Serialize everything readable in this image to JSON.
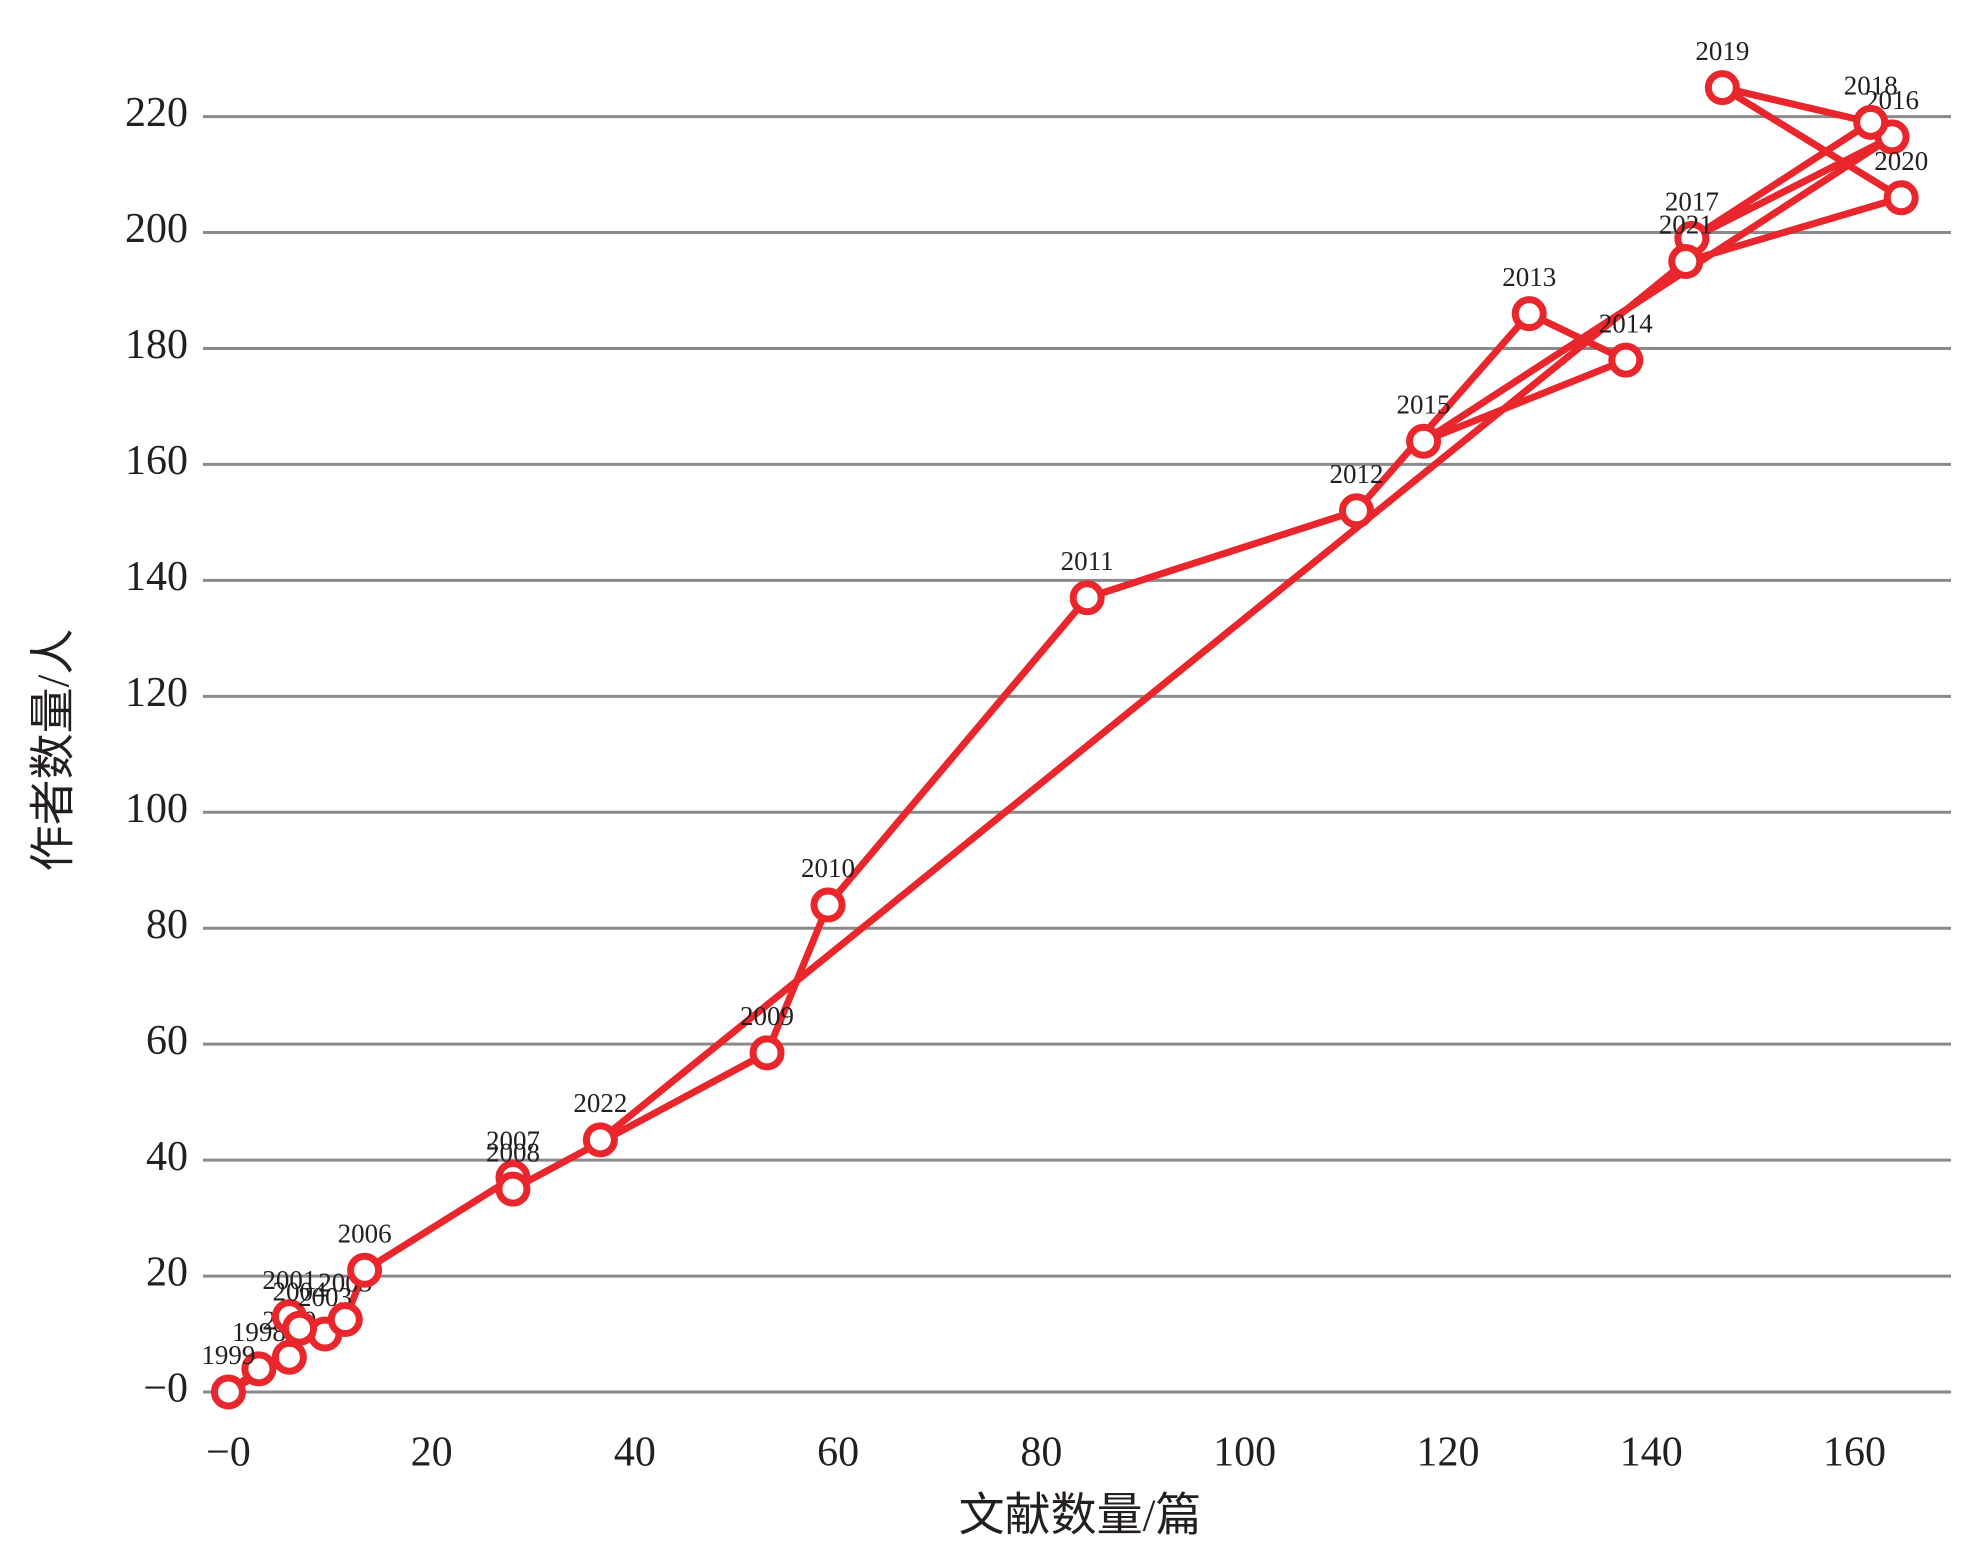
{
  "chart_data": {
    "type": "line",
    "x_label": "文献数量/篇",
    "y_label": "作者数量/人",
    "x": [
      3,
      0,
      6,
      6,
      9.5,
      7,
      11.5,
      13.4,
      28,
      28,
      53,
      59,
      84.5,
      111,
      128,
      137.5,
      117.6,
      163.7,
      144,
      161.6,
      147,
      164.6,
      143.4,
      36.6
    ],
    "values": [
      4,
      0,
      6,
      13,
      10,
      11,
      12.5,
      21,
      37,
      35,
      58.5,
      84,
      137,
      152,
      186,
      178,
      164,
      216.5,
      199,
      219,
      225,
      206,
      195,
      43.5
    ],
    "point_labels": [
      "1998",
      "1999",
      "2000",
      "2001",
      "2003",
      "2004",
      "2005",
      "2006",
      "2007",
      "2008",
      "2009",
      "2010",
      "2011",
      "2012",
      "2013",
      "2014",
      "2015",
      "2016",
      "2017",
      "2018",
      "2019",
      "2020",
      "2021",
      "2022"
    ],
    "color": "#e8262b",
    "xlim": [
      -2.5,
      169.5
    ],
    "xticks": [
      {
        "value": 0,
        "label": "−0"
      },
      20,
      40,
      60,
      80,
      100,
      120,
      140,
      160
    ],
    "ylim": [
      -5,
      232
    ],
    "yticks": [
      {
        "value": 0,
        "label": "−0"
      },
      20,
      40,
      60,
      80,
      100,
      120,
      140,
      160,
      180,
      200,
      220
    ],
    "grid": true
  }
}
